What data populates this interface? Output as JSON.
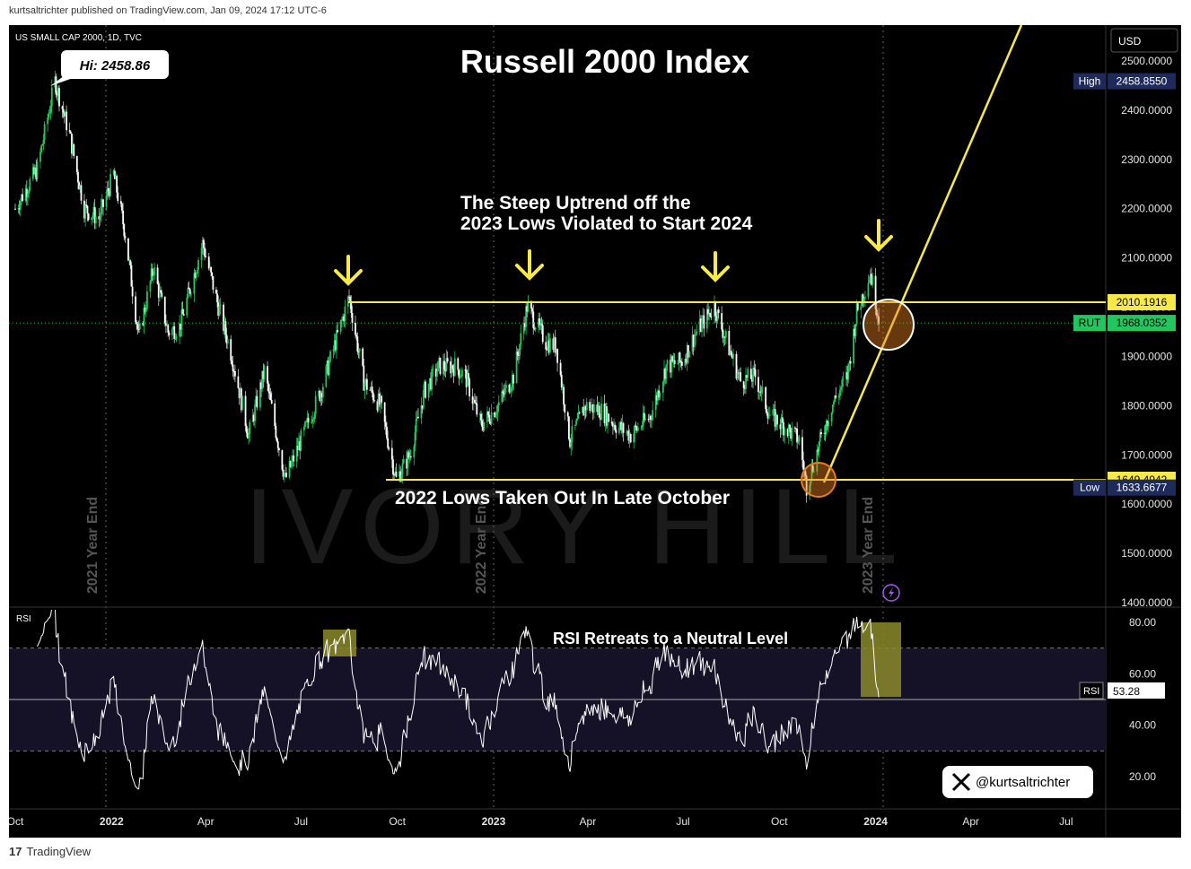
{
  "header": {
    "published": "kurtsaltrichter published on TradingView.com, Jan 09, 2024 17:12 UTC-6"
  },
  "footer": {
    "brand": "TradingView"
  },
  "chart_data": {
    "type": "candlestick",
    "symbol": "US SMALL CAP 2000, 1D, TVC",
    "title": "Russell 2000 Index",
    "currency": "USD",
    "high_callout": "Hi: 2458.86",
    "watermark": "IVORY HILL",
    "x_ticks": [
      "Oct",
      "2022",
      "Apr",
      "Jul",
      "Oct",
      "2023",
      "Apr",
      "Jul",
      "Oct",
      "2024",
      "Apr",
      "Jul"
    ],
    "y_ticks": [
      "2500.0000",
      "2400.0000",
      "2300.0000",
      "2200.0000",
      "2100.0000",
      "2000.0000",
      "1900.0000",
      "1800.0000",
      "1700.0000",
      "1600.0000",
      "1500.0000",
      "1400.0000"
    ],
    "y_values": [
      2500,
      2400,
      2300,
      2200,
      2100,
      2000,
      1900,
      1800,
      1700,
      1600,
      1500,
      1400
    ],
    "price_tags": [
      {
        "label": "High",
        "value": "2458.8550",
        "level": 2458.855,
        "color": "#1e2a5a"
      },
      {
        "label": "",
        "value": "2010.1916",
        "level": 2010.1916,
        "color": "#f7e94a"
      },
      {
        "label": "RUT",
        "value": "1968.0352",
        "level": 1968.0352,
        "color": "#22c55e"
      },
      {
        "label": "",
        "value": "1649.4942",
        "level": 1649.4942,
        "color": "#f7e94a"
      },
      {
        "label": "Low",
        "value": "1633.6677",
        "level": 1633.6677,
        "color": "#1e2a5a"
      }
    ],
    "resistance": 2010.1916,
    "support": 1649.4942,
    "last_price": 1968.0352,
    "year_end_labels": [
      "2021 Year End",
      "2022 Year End",
      "2023 Year End"
    ],
    "annotations": {
      "uptrend_line1": "The Steep Uptrend off the",
      "uptrend_line2": "2023 Lows Violated to Start 2024",
      "lows": "2022 Lows Taken Out In Late October",
      "rsi_note": "RSI Retreats to a Neutral Level"
    },
    "rsi": {
      "label": "RSI",
      "value": "53.28",
      "value_num": 53.28,
      "ticks": [
        "80.00",
        "60.00",
        "40.00",
        "20.00"
      ],
      "tick_values": [
        80,
        60,
        40,
        20
      ],
      "upper": 70,
      "lower": 30,
      "mid": 50
    },
    "twitter_handle": "@kurtsaltrichter",
    "price_series": [
      [
        "2021-10-01",
        2200
      ],
      [
        "2021-10-22",
        2280
      ],
      [
        "2021-11-08",
        2458.86
      ],
      [
        "2021-11-22",
        2350
      ],
      [
        "2021-12-06",
        2200
      ],
      [
        "2021-12-20",
        2180
      ],
      [
        "2022-01-03",
        2270
      ],
      [
        "2022-01-14",
        2150
      ],
      [
        "2022-01-27",
        1940
      ],
      [
        "2022-02-10",
        2080
      ],
      [
        "2022-02-24",
        1950
      ],
      [
        "2022-03-07",
        1960
      ],
      [
        "2022-03-29",
        2130
      ],
      [
        "2022-04-12",
        2010
      ],
      [
        "2022-04-26",
        1900
      ],
      [
        "2022-05-12",
        1740
      ],
      [
        "2022-05-27",
        1870
      ],
      [
        "2022-06-16",
        1650
      ],
      [
        "2022-07-01",
        1730
      ],
      [
        "2022-07-20",
        1830
      ],
      [
        "2022-08-16",
        2021
      ],
      [
        "2022-08-30",
        1850
      ],
      [
        "2022-09-15",
        1800
      ],
      [
        "2022-09-30",
        1650
      ],
      [
        "2022-10-13",
        1700
      ],
      [
        "2022-10-27",
        1830
      ],
      [
        "2022-11-10",
        1880
      ],
      [
        "2022-11-25",
        1880
      ],
      [
        "2022-12-05",
        1860
      ],
      [
        "2022-12-20",
        1760
      ],
      [
        "2023-01-05",
        1800
      ],
      [
        "2023-01-20",
        1860
      ],
      [
        "2023-02-02",
        2001
      ],
      [
        "2023-02-20",
        1930
      ],
      [
        "2023-03-02",
        1920
      ],
      [
        "2023-03-15",
        1730
      ],
      [
        "2023-03-30",
        1800
      ],
      [
        "2023-04-14",
        1790
      ],
      [
        "2023-04-28",
        1760
      ],
      [
        "2023-05-12",
        1740
      ],
      [
        "2023-05-31",
        1780
      ],
      [
        "2023-06-15",
        1880
      ],
      [
        "2023-06-30",
        1890
      ],
      [
        "2023-07-14",
        1950
      ],
      [
        "2023-07-31",
        2003
      ],
      [
        "2023-08-10",
        1940
      ],
      [
        "2023-08-25",
        1850
      ],
      [
        "2023-09-08",
        1860
      ],
      [
        "2023-09-22",
        1780
      ],
      [
        "2023-10-05",
        1760
      ],
      [
        "2023-10-20",
        1730
      ],
      [
        "2023-10-27",
        1636
      ],
      [
        "2023-11-08",
        1720
      ],
      [
        "2023-11-20",
        1800
      ],
      [
        "2023-12-05",
        1860
      ],
      [
        "2023-12-14",
        1990
      ],
      [
        "2023-12-27",
        2070
      ],
      [
        "2024-01-05",
        1968
      ]
    ]
  }
}
